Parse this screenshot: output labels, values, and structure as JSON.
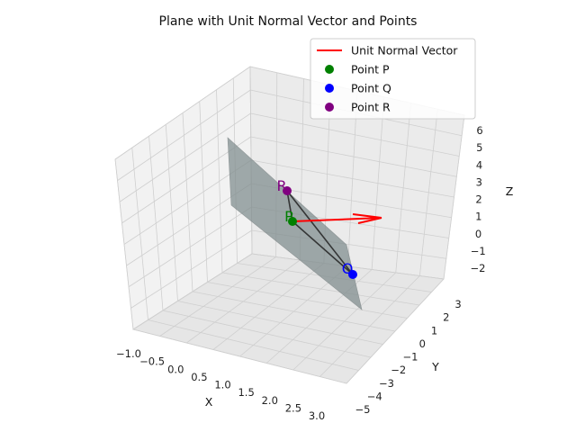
{
  "chart_data": {
    "type": "3d-surface",
    "title": "Plane with Unit Normal Vector and Points",
    "xlabel": "X",
    "ylabel": "Y",
    "zlabel": "Z",
    "xticks": [
      "−1.0",
      "−0.5",
      "0.0",
      "0.5",
      "1.0",
      "1.5",
      "2.0",
      "2.5",
      "3.0"
    ],
    "yticks": [
      "−5",
      "−4",
      "−3",
      "−2",
      "−1",
      "0",
      "1",
      "2",
      "3"
    ],
    "zticks": [
      "−2",
      "−1",
      "0",
      "1",
      "2",
      "3",
      "4",
      "5",
      "6"
    ],
    "legend": {
      "placement": "top-right",
      "entries": [
        {
          "label": "Unit Normal Vector",
          "marker": "line",
          "color": "#ff0000"
        },
        {
          "label": "Point P",
          "marker": "dot",
          "color": "#008000"
        },
        {
          "label": "Point Q",
          "marker": "dot",
          "color": "#0000ff"
        },
        {
          "label": "Point R",
          "marker": "dot",
          "color": "#800080"
        }
      ]
    },
    "points": [
      {
        "name": "P",
        "label": "P",
        "color": "#008000"
      },
      {
        "name": "Q",
        "label": "Q",
        "color": "#0000ff"
      },
      {
        "name": "R",
        "label": "R",
        "color": "#800080"
      }
    ],
    "plane_color": "#7f8c8d",
    "normal_color": "#ff0000",
    "grid": true
  }
}
